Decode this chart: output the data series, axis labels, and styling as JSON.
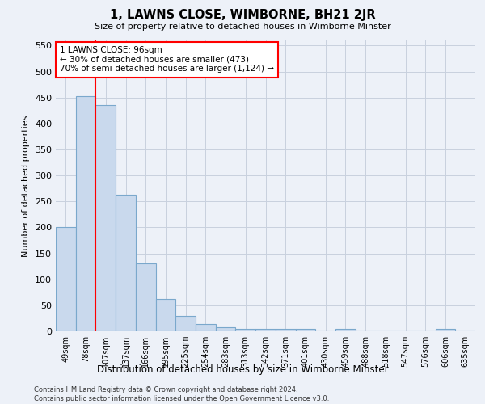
{
  "title": "1, LAWNS CLOSE, WIMBORNE, BH21 2JR",
  "subtitle": "Size of property relative to detached houses in Wimborne Minster",
  "xlabel": "Distribution of detached houses by size in Wimborne Minster",
  "ylabel": "Number of detached properties",
  "footer_line1": "Contains HM Land Registry data © Crown copyright and database right 2024.",
  "footer_line2": "Contains public sector information licensed under the Open Government Licence v3.0.",
  "categories": [
    "49sqm",
    "78sqm",
    "107sqm",
    "137sqm",
    "166sqm",
    "195sqm",
    "225sqm",
    "254sqm",
    "283sqm",
    "313sqm",
    "342sqm",
    "371sqm",
    "401sqm",
    "430sqm",
    "459sqm",
    "488sqm",
    "518sqm",
    "547sqm",
    "576sqm",
    "606sqm",
    "635sqm"
  ],
  "values": [
    200,
    452,
    435,
    263,
    130,
    62,
    29,
    14,
    8,
    5,
    5,
    5,
    5,
    0,
    5,
    0,
    0,
    0,
    0,
    5,
    0
  ],
  "bar_color": "#c9d9ed",
  "bar_edge_color": "#7aa8cc",
  "grid_color": "#c8d0de",
  "background_color": "#edf1f8",
  "vline_color": "red",
  "vline_x_index": 1.5,
  "annotation_text": "1 LAWNS CLOSE: 96sqm\n← 30% of detached houses are smaller (473)\n70% of semi-detached houses are larger (1,124) →",
  "annotation_box_color": "white",
  "annotation_box_edge_color": "red",
  "ylim": [
    0,
    560
  ],
  "yticks": [
    0,
    50,
    100,
    150,
    200,
    250,
    300,
    350,
    400,
    450,
    500,
    550
  ]
}
